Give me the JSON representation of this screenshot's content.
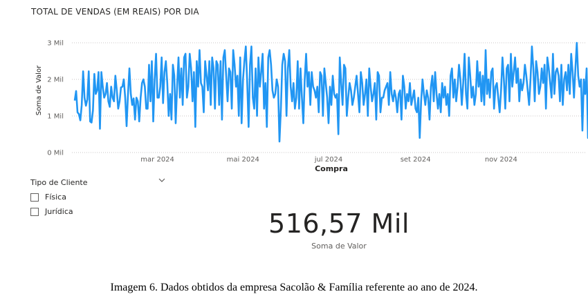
{
  "chart_data": {
    "type": "line",
    "title": "TOTAL DE VENDAS (EM REAIS) POR DIA",
    "xlabel": "Compra",
    "ylabel": "Soma de Valor",
    "ylim": [
      0,
      3000
    ],
    "y_ticks": [
      {
        "value": 0,
        "label": "0 Mil"
      },
      {
        "value": 1000,
        "label": "1 Mil"
      },
      {
        "value": 2000,
        "label": "2 Mil"
      },
      {
        "value": 3000,
        "label": "3 Mil"
      }
    ],
    "x_ticks": [
      {
        "day": 60,
        "label": "mar 2024"
      },
      {
        "day": 121,
        "label": "mai 2024"
      },
      {
        "day": 182,
        "label": "jul 2024"
      },
      {
        "day": 244,
        "label": "set 2024"
      },
      {
        "day": 305,
        "label": "nov 2024"
      }
    ],
    "x_range_day_of_year": [
      1,
      366
    ],
    "grid": true,
    "color": "#2196F3",
    "series": [
      {
        "values": [
          1420,
          1680,
          1100,
          1050,
          880,
          1300,
          2220,
          1500,
          1280,
          1450,
          2220,
          850,
          820,
          1150,
          2150,
          1600,
          1700,
          2200,
          650,
          2200,
          1800,
          1500,
          1600,
          1900,
          1400,
          1250,
          1800,
          1500,
          1400,
          2100,
          1700,
          1200,
          1400,
          1780,
          1800,
          2000,
          1500,
          720,
          1600,
          2300,
          1600,
          1300,
          1480,
          900,
          1500,
          1400,
          850,
          1500,
          1900,
          2000,
          1800,
          1200,
          1200,
          2400,
          1400,
          2500,
          850,
          2000,
          2700,
          1500,
          1500,
          1800,
          2600,
          1350,
          2200,
          2500,
          1900,
          1000,
          1600,
          900,
          2400,
          2100,
          800,
          1800,
          2600,
          1500,
          2300,
          1300,
          2600,
          2700,
          1500,
          1800,
          2700,
          2300,
          1400,
          2200,
          700,
          2500,
          1800,
          2800,
          1900,
          1800,
          1100,
          2500,
          2100,
          1700,
          2500,
          1300,
          2600,
          2300,
          1200,
          2500,
          2400,
          1300,
          2500,
          900,
          2600,
          2800,
          2100,
          1400,
          2300,
          2200,
          1200,
          2800,
          2400,
          1800,
          2100,
          1000,
          2600,
          800,
          2000,
          2500,
          2900,
          1900,
          700,
          2400,
          2900,
          1500,
          1200,
          2300,
          1000,
          2600,
          1800,
          2200,
          2700,
          1200,
          1900,
          700,
          2600,
          2800,
          2400,
          1700,
          1500,
          1600,
          2000,
          1800,
          300,
          1200,
          2400,
          2700,
          2500,
          1000,
          2300,
          2800,
          1800,
          1400,
          1900,
          1200,
          1500,
          2500,
          1200,
          2300,
          1500,
          800,
          2000,
          2700,
          1800,
          2200,
          1300,
          2200,
          1800,
          1700,
          1500,
          1800,
          1100,
          2200,
          2100,
          1000,
          2300,
          1900,
          1500,
          800,
          1800,
          1300,
          2100,
          1600,
          1500,
          1600,
          500,
          2600,
          1900,
          1300,
          2400,
          2300,
          1000,
          1500,
          1900,
          1700,
          1300,
          1500,
          1800,
          2100,
          1600,
          1100,
          2200,
          1900,
          1300,
          1600,
          2000,
          1000,
          2300,
          1800,
          1400,
          1600,
          1900,
          900,
          2200,
          2100,
          1100,
          1500,
          1500,
          1700,
          1800,
          1900,
          1300,
          2200,
          1600,
          1400,
          1700,
          1500,
          1100,
          1600,
          1700,
          900,
          2100,
          1800,
          1200,
          1600,
          1400,
          1900,
          1300,
          1500,
          1700,
          1200,
          1100,
          1500,
          400,
          1400,
          2000,
          1600,
          1300,
          1700,
          1500,
          900,
          1800,
          2100,
          1400,
          2200,
          1600,
          1200,
          1600,
          1100,
          1900,
          1500,
          1800,
          1300,
          1600,
          1000,
          2100,
          2300,
          1500,
          2000,
          1400,
          1800,
          2400,
          2000,
          1300,
          1900,
          2700,
          1600,
          1200,
          2600,
          2100,
          1500,
          1800,
          1300,
          1600,
          2500,
          1800,
          2200,
          1400,
          2100,
          1300,
          2800,
          1600,
          2000,
          1500,
          2200,
          2300,
          1200,
          1800,
          1900,
          1500,
          1100,
          1700,
          2600,
          2000,
          1200,
          2300,
          2400,
          1400,
          2700,
          1800,
          2200,
          2600,
          1900,
          2300,
          1400,
          2000,
          1700,
          1900,
          2400,
          2100,
          1700,
          1300,
          2000,
          2900,
          2300,
          1400,
          2500,
          2200,
          1600,
          1800,
          2300,
          1900,
          2400,
          1200,
          2600,
          2300,
          1900,
          1500,
          2700,
          1600,
          2200,
          2300,
          2100,
          1400,
          2400,
          1300,
          2000,
          2200,
          1700,
          2400,
          1600,
          2700,
          2200,
          1500,
          2300,
          3000,
          2100,
          1800,
          2000,
          600,
          2000,
          1600,
          2300,
          400,
          1300,
          1800,
          600,
          2600,
          1400,
          1000,
          1600,
          1000,
          600
        ],
        "start_day": 1
      }
    ]
  },
  "slicer": {
    "title": "Tipo de Cliente",
    "options": [
      "Física",
      "Jurídica"
    ]
  },
  "kpi": {
    "value": "516,57 Mil",
    "label": "Soma de Valor"
  },
  "caption": "Imagem 6. Dados obtidos da empresa Sacolão & Família referente ao ano de 2024."
}
